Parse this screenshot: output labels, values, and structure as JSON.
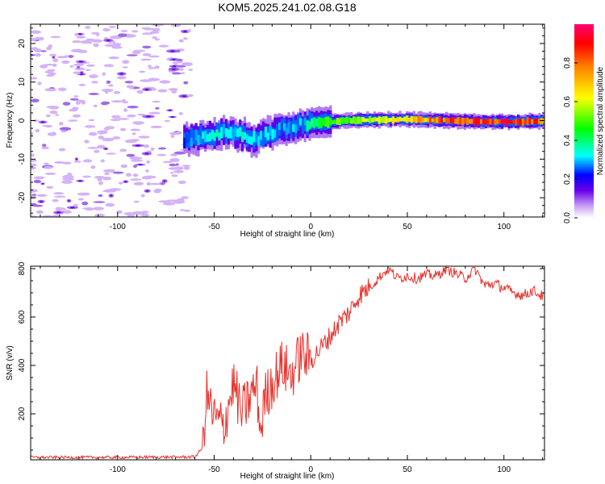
{
  "chart_data": [
    {
      "type": "heatmap",
      "title": "KOM5.2025.241.02.08.G18",
      "xlabel": "Height of straight line (km)",
      "ylabel": "Frequency (Hz)",
      "xlim": [
        -145,
        121
      ],
      "ylim": [
        -25,
        25
      ],
      "xticks": [
        -100,
        -50,
        0,
        50,
        100
      ],
      "xtick_labels": [
        "-100",
        "-50",
        "0",
        "50",
        "100"
      ],
      "yticks": [
        -20,
        -10,
        0,
        10,
        20
      ],
      "ytick_labels": [
        "-20",
        "-10",
        "0",
        "10",
        "20"
      ],
      "colorbar": {
        "label": "Normalized spectral amplitude",
        "range": [
          0,
          1
        ],
        "ticks": [
          0.0,
          0.2,
          0.4,
          0.6,
          0.8
        ],
        "tick_labels": [
          "0.0",
          "0.2",
          "0.4",
          "0.6",
          "0.8"
        ]
      },
      "ridge": {
        "x": [
          -65,
          -60,
          -55,
          -50,
          -45,
          -40,
          -35,
          -30,
          -25,
          -20,
          -15,
          -10,
          -5,
          0,
          5,
          10,
          20,
          30,
          50,
          70,
          90,
          110,
          121
        ],
        "freq": [
          -5,
          -4.5,
          -4,
          -3.5,
          -3,
          -3.5,
          -4,
          -5,
          -4,
          -3,
          -2,
          -1.5,
          -1,
          -0.5,
          -0.5,
          -0.3,
          0,
          0.2,
          0.3,
          0,
          -0.3,
          -0.3,
          0
        ],
        "amplitude": [
          0.25,
          0.3,
          0.32,
          0.35,
          0.33,
          0.3,
          0.35,
          0.32,
          0.3,
          0.3,
          0.28,
          0.3,
          0.3,
          0.4,
          0.45,
          0.5,
          0.55,
          0.6,
          0.7,
          0.85,
          0.9,
          0.88,
          0.8
        ]
      },
      "noise_region_x": [
        -145,
        -62
      ]
    },
    {
      "type": "line",
      "xlabel": "Height of straight line (km)",
      "ylabel": "SNR (v/v)",
      "xlim": [
        -145,
        121
      ],
      "ylim": [
        10,
        810
      ],
      "xticks": [
        -100,
        -50,
        0,
        50,
        100
      ],
      "xtick_labels": [
        "-100",
        "-50",
        "0",
        "50",
        "100"
      ],
      "yticks": [
        200,
        400,
        600,
        800
      ],
      "ytick_labels": [
        "200",
        "400",
        "600",
        "800"
      ],
      "series": [
        {
          "name": "SNR",
          "color": "#e8302a",
          "x": [
            -145,
            -100,
            -60,
            -56,
            -54,
            -50,
            -45,
            -40,
            -36,
            -32,
            -28,
            -26,
            -24,
            -20,
            -15,
            -10,
            -5,
            0,
            5,
            10,
            15,
            20,
            25,
            30,
            35,
            40,
            45,
            50,
            55,
            60,
            65,
            70,
            75,
            80,
            85,
            90,
            95,
            100,
            105,
            110,
            115,
            121
          ],
          "values": [
            20,
            20,
            22,
            60,
            280,
            180,
            150,
            330,
            200,
            260,
            320,
            120,
            260,
            330,
            400,
            360,
            450,
            420,
            470,
            520,
            580,
            620,
            690,
            720,
            760,
            800,
            760,
            770,
            760,
            775,
            770,
            800,
            780,
            760,
            800,
            730,
            740,
            720,
            700,
            690,
            710,
            680
          ]
        }
      ]
    }
  ]
}
